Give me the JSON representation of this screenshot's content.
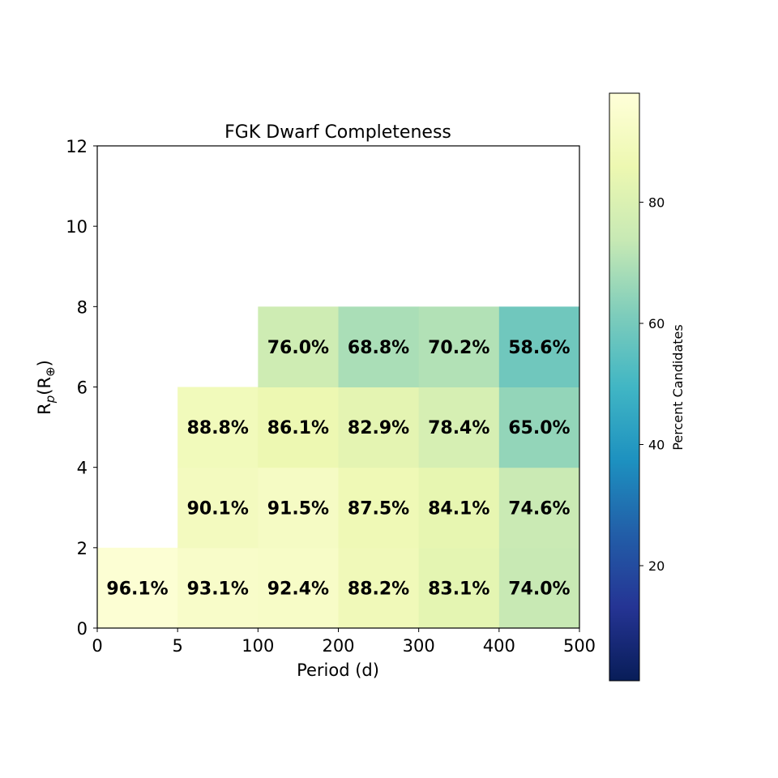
{
  "chart_data": {
    "type": "heatmap",
    "title": "FGK Dwarf Completeness",
    "xlabel": "Period (d)",
    "ylabel": {
      "base": "R",
      "sub": "p",
      "paren": "(R",
      "sym": "⊕",
      "close": ")"
    },
    "x_ticks": [
      "0",
      "5",
      "100",
      "200",
      "300",
      "400",
      "500"
    ],
    "y_ticks": [
      "0",
      "2",
      "4",
      "6",
      "8",
      "10",
      "12"
    ],
    "ylim": [
      0,
      12
    ],
    "grid": false,
    "colormap": "YlGnBu",
    "colorbar": {
      "label": "Percent Candidates",
      "range": [
        1,
        98
      ],
      "ticks": [
        "20",
        "40",
        "60",
        "80"
      ]
    },
    "cells": [
      {
        "period_bin": "0-5",
        "radius_bin": "0-2",
        "value": 96.1,
        "label": "96.1%"
      },
      {
        "period_bin": "5-100",
        "radius_bin": "0-2",
        "value": 93.1,
        "label": "93.1%"
      },
      {
        "period_bin": "100-200",
        "radius_bin": "0-2",
        "value": 92.4,
        "label": "92.4%"
      },
      {
        "period_bin": "200-300",
        "radius_bin": "0-2",
        "value": 88.2,
        "label": "88.2%"
      },
      {
        "period_bin": "300-400",
        "radius_bin": "0-2",
        "value": 83.1,
        "label": "83.1%"
      },
      {
        "period_bin": "400-500",
        "radius_bin": "0-2",
        "value": 74.0,
        "label": "74.0%"
      },
      {
        "period_bin": "5-100",
        "radius_bin": "2-4",
        "value": 90.1,
        "label": "90.1%"
      },
      {
        "period_bin": "100-200",
        "radius_bin": "2-4",
        "value": 91.5,
        "label": "91.5%"
      },
      {
        "period_bin": "200-300",
        "radius_bin": "2-4",
        "value": 87.5,
        "label": "87.5%"
      },
      {
        "period_bin": "300-400",
        "radius_bin": "2-4",
        "value": 84.1,
        "label": "84.1%"
      },
      {
        "period_bin": "400-500",
        "radius_bin": "2-4",
        "value": 74.6,
        "label": "74.6%"
      },
      {
        "period_bin": "5-100",
        "radius_bin": "4-6",
        "value": 88.8,
        "label": "88.8%"
      },
      {
        "period_bin": "100-200",
        "radius_bin": "4-6",
        "value": 86.1,
        "label": "86.1%"
      },
      {
        "period_bin": "200-300",
        "radius_bin": "4-6",
        "value": 82.9,
        "label": "82.9%"
      },
      {
        "period_bin": "300-400",
        "radius_bin": "4-6",
        "value": 78.4,
        "label": "78.4%"
      },
      {
        "period_bin": "400-500",
        "radius_bin": "4-6",
        "value": 65.0,
        "label": "65.0%"
      },
      {
        "period_bin": "100-200",
        "radius_bin": "6-8",
        "value": 76.0,
        "label": "76.0%"
      },
      {
        "period_bin": "200-300",
        "radius_bin": "6-8",
        "value": 68.8,
        "label": "68.8%"
      },
      {
        "period_bin": "300-400",
        "radius_bin": "6-8",
        "value": 70.2,
        "label": "70.2%"
      },
      {
        "period_bin": "400-500",
        "radius_bin": "6-8",
        "value": 58.6,
        "label": "58.6%"
      }
    ]
  }
}
